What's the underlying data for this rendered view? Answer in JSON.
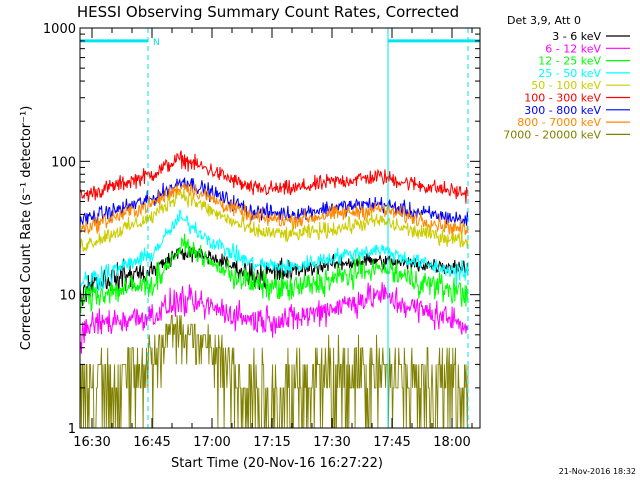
{
  "chart_data": {
    "type": "line",
    "title": "HESSI Observing Summary Count Rates, Corrected",
    "xlabel": "Start Time (20-Nov-16 16:27:22)",
    "ylabel": "Corrected Count Rate (s⁻¹ detector⁻¹)",
    "yscale": "log",
    "ylim": [
      1,
      1000
    ],
    "xlim": [
      "16:27",
      "18:07"
    ],
    "x_ticks": [
      "16:30",
      "16:45",
      "17:00",
      "17:15",
      "17:30",
      "17:45",
      "18:00"
    ],
    "y_ticks": [
      "1",
      "10",
      "100",
      "1000"
    ],
    "legend_title": "Det 3,9, Att 0",
    "legend_position": "outside-right",
    "timestamp": "21-Nov-2016 18:32",
    "attenuator_marker": "N",
    "day_night_bars": [
      {
        "start": "16:27",
        "end": "16:44",
        "level": 800
      },
      {
        "start": "17:44",
        "end": "18:07",
        "level": 800
      }
    ],
    "vertical_markers": [
      {
        "time": "16:27",
        "style": "solid"
      },
      {
        "time": "16:44",
        "style": "dashed"
      },
      {
        "time": "17:44",
        "style": "solid"
      },
      {
        "time": "18:04",
        "style": "dashed"
      }
    ],
    "series": [
      {
        "name": "3 - 6 keV",
        "color": "#000000",
        "keypoints": [
          [
            "16:27",
            10
          ],
          [
            "16:30",
            12.5
          ],
          [
            "16:45",
            15
          ],
          [
            "16:52",
            21
          ],
          [
            "17:00",
            19
          ],
          [
            "17:10",
            14
          ],
          [
            "17:20",
            15
          ],
          [
            "17:30",
            17
          ],
          [
            "17:40",
            18
          ],
          [
            "17:50",
            17
          ],
          [
            "18:04",
            16
          ]
        ]
      },
      {
        "name": "6 - 12 keV",
        "color": "#ff00ff",
        "keypoints": [
          [
            "16:27",
            4.5
          ],
          [
            "16:30",
            6
          ],
          [
            "16:45",
            7
          ],
          [
            "16:52",
            9
          ],
          [
            "17:00",
            8
          ],
          [
            "17:10",
            6.5
          ],
          [
            "17:20",
            6.5
          ],
          [
            "17:30",
            8
          ],
          [
            "17:42",
            10
          ],
          [
            "17:50",
            8
          ],
          [
            "18:04",
            6
          ]
        ]
      },
      {
        "name": "12 - 25 keV",
        "color": "#00ff00",
        "keypoints": [
          [
            "16:27",
            9
          ],
          [
            "16:30",
            10
          ],
          [
            "16:45",
            12
          ],
          [
            "16:53",
            24
          ],
          [
            "17:00",
            17
          ],
          [
            "17:10",
            12
          ],
          [
            "17:20",
            11
          ],
          [
            "17:30",
            13
          ],
          [
            "17:42",
            16
          ],
          [
            "17:50",
            13
          ],
          [
            "18:04",
            10
          ]
        ]
      },
      {
        "name": "25 - 50 keV",
        "color": "#00ffff",
        "keypoints": [
          [
            "16:27",
            12
          ],
          [
            "16:30",
            13
          ],
          [
            "16:45",
            20
          ],
          [
            "16:52",
            38
          ],
          [
            "17:00",
            25
          ],
          [
            "17:10",
            17
          ],
          [
            "17:20",
            16
          ],
          [
            "17:30",
            19
          ],
          [
            "17:42",
            22
          ],
          [
            "17:50",
            18
          ],
          [
            "18:04",
            14
          ]
        ]
      },
      {
        "name": "50 - 100 keV",
        "color": "#cccc00",
        "keypoints": [
          [
            "16:27",
            23
          ],
          [
            "16:30",
            25
          ],
          [
            "16:45",
            38
          ],
          [
            "16:52",
            58
          ],
          [
            "17:00",
            42
          ],
          [
            "17:10",
            30
          ],
          [
            "17:20",
            28
          ],
          [
            "17:30",
            31
          ],
          [
            "17:42",
            36
          ],
          [
            "17:50",
            30
          ],
          [
            "18:04",
            25
          ]
        ]
      },
      {
        "name": "100 - 300 keV",
        "color": "#ff0000",
        "keypoints": [
          [
            "16:27",
            54
          ],
          [
            "16:30",
            58
          ],
          [
            "16:45",
            80
          ],
          [
            "16:52",
            105
          ],
          [
            "17:00",
            85
          ],
          [
            "17:10",
            62
          ],
          [
            "17:20",
            62
          ],
          [
            "17:30",
            70
          ],
          [
            "17:42",
            77
          ],
          [
            "17:50",
            68
          ],
          [
            "18:04",
            57
          ]
        ]
      },
      {
        "name": "300 - 800 keV",
        "color": "#0000ff",
        "keypoints": [
          [
            "16:27",
            36
          ],
          [
            "16:30",
            38
          ],
          [
            "16:45",
            52
          ],
          [
            "16:53",
            72
          ],
          [
            "17:00",
            58
          ],
          [
            "17:10",
            42
          ],
          [
            "17:20",
            40
          ],
          [
            "17:30",
            45
          ],
          [
            "17:42",
            48
          ],
          [
            "17:50",
            42
          ],
          [
            "18:04",
            36
          ]
        ]
      },
      {
        "name": "800 - 7000 keV",
        "color": "#ff8800",
        "keypoints": [
          [
            "16:27",
            31
          ],
          [
            "16:30",
            33
          ],
          [
            "16:45",
            48
          ],
          [
            "16:53",
            66
          ],
          [
            "17:00",
            52
          ],
          [
            "17:10",
            38
          ],
          [
            "17:20",
            36
          ],
          [
            "17:30",
            40
          ],
          [
            "17:42",
            44
          ],
          [
            "17:50",
            38
          ],
          [
            "18:04",
            30
          ]
        ]
      },
      {
        "name": "7000 - 20000 keV",
        "color": "#808000",
        "keypoints": [
          [
            "16:27",
            2
          ],
          [
            "16:30",
            2
          ],
          [
            "16:44",
            3
          ],
          [
            "16:50",
            6
          ],
          [
            "17:00",
            4
          ],
          [
            "17:10",
            2
          ],
          [
            "17:20",
            2
          ],
          [
            "17:30",
            2.5
          ],
          [
            "17:42",
            3
          ],
          [
            "17:50",
            2.5
          ],
          [
            "18:04",
            2
          ]
        ]
      }
    ]
  }
}
